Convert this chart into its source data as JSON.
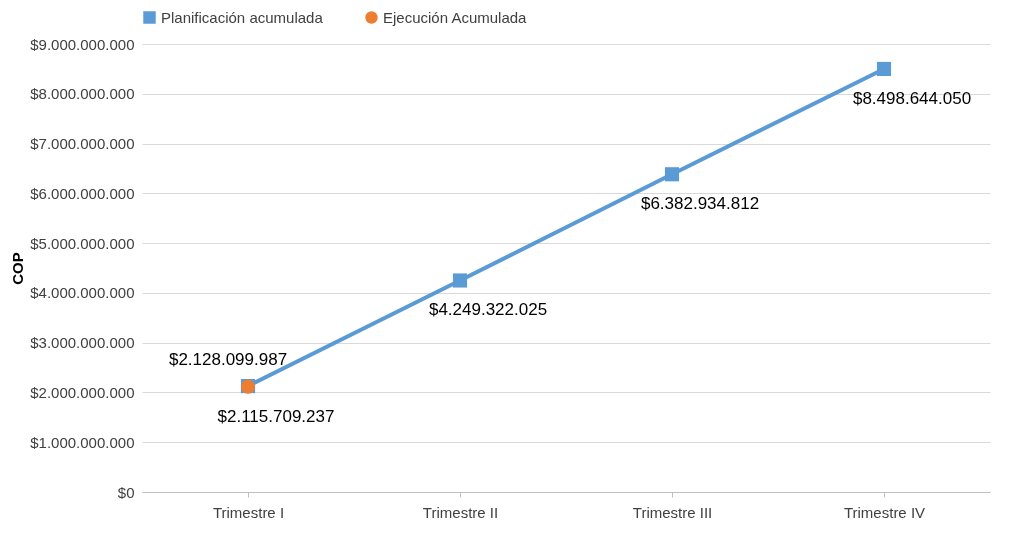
{
  "chart_data": {
    "type": "line",
    "ylabel": "COP",
    "categories": [
      "Trimestre I",
      "Trimestre II",
      "Trimestre III",
      "Trimestre IV"
    ],
    "series": [
      {
        "name": "Planificación acumulada",
        "color": "#5b9bd5",
        "marker": "square",
        "values": [
          2128099987,
          4249322025,
          6382934812,
          8498644050
        ],
        "value_labels": [
          "$2.128.099.987",
          "$4.249.322.025",
          "$6.382.934.812",
          "$8.498.644.050"
        ]
      },
      {
        "name": "Ejecución Acumulada",
        "color": "#ed7d31",
        "marker": "circle",
        "values": [
          2115709237,
          null,
          null,
          null
        ],
        "value_labels": [
          "$2.115.709.237",
          null,
          null,
          null
        ]
      }
    ],
    "ylim": [
      0,
      9000000000
    ],
    "yticks": [
      {
        "value": 0,
        "label": "$0"
      },
      {
        "value": 1000000000,
        "label": "$1.000.000.000"
      },
      {
        "value": 2000000000,
        "label": "$2.000.000.000"
      },
      {
        "value": 3000000000,
        "label": "$3.000.000.000"
      },
      {
        "value": 4000000000,
        "label": "$4.000.000.000"
      },
      {
        "value": 5000000000,
        "label": "$5.000.000.000"
      },
      {
        "value": 6000000000,
        "label": "$6.000.000.000"
      },
      {
        "value": 7000000000,
        "label": "$7.000.000.000"
      },
      {
        "value": 8000000000,
        "label": "$8.000.000.000"
      },
      {
        "value": 9000000000,
        "label": "$9.000.000.000"
      }
    ],
    "grid": "y",
    "legend": "top",
    "line_style": "solid"
  }
}
